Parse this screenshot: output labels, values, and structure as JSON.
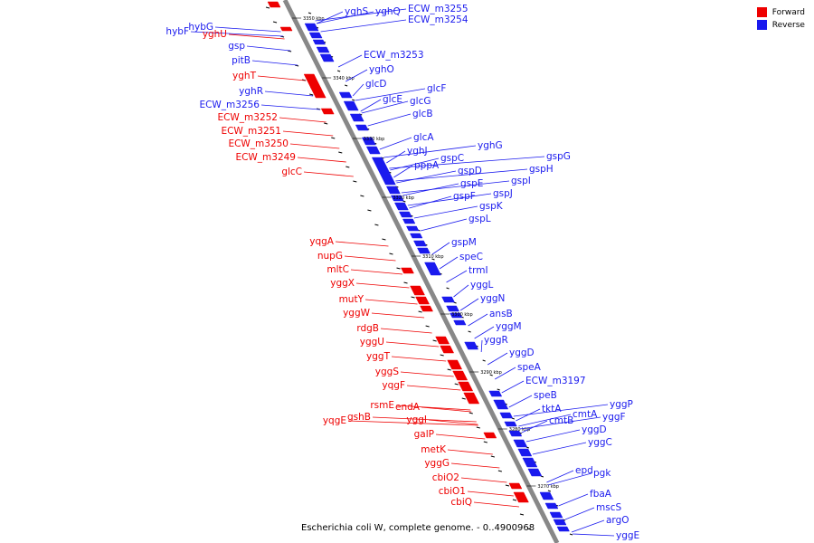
{
  "legend": {
    "forward_label": "Forward",
    "reverse_label": "Reverse",
    "forward_color": "#ee0000",
    "reverse_color": "#1a1aee"
  },
  "caption": "Escherichia coli W, complete genome. - 0..4900968",
  "backbone_color": "#888888",
  "kbp_marks": [
    "3350 kbp",
    "3340 kbp",
    "3330 kbp",
    "3320 kbp",
    "3310 kbp",
    "3300 kbp",
    "3290 kbp",
    "3280 kbp",
    "3270 kbp"
  ],
  "reverse_genes": [
    "yghS",
    "yghQ",
    "ECW_m3255",
    "ECW_m3254",
    "ECW_m3253",
    "yghO",
    "glcD",
    "glcF",
    "glcE",
    "glcG",
    "glcB",
    "glcA",
    "yghJ",
    "yghG",
    "pppA",
    "gspC",
    "gspD",
    "gspG",
    "gspH",
    "gspE",
    "gspI",
    "gspF",
    "gspJ",
    "gspK",
    "gspL",
    "gspM",
    "speC",
    "trmI",
    "yggL",
    "yggN",
    "ansB",
    "yggM",
    "yggR",
    "yggD",
    "speA",
    "ECW_m3197",
    "speB",
    "tktA",
    "cmtA",
    "yggP",
    "cmtB",
    "yggF",
    "yggD",
    "yggC",
    "epd",
    "pgk",
    "fbaA",
    "mscS",
    "argO",
    "yggE"
  ],
  "forward_genes": [
    "hybF",
    "hybG",
    "yghU",
    "gsp",
    "pitB",
    "yghT",
    "yghR",
    "ECW_m3256",
    "ECW_m3252",
    "ECW_m3251",
    "ECW_m3250",
    "ECW_m3249",
    "glcC",
    "yqgA",
    "nupG",
    "mltC",
    "yggX",
    "mutY",
    "yggW",
    "rdgB",
    "yggU",
    "yggT",
    "yggS",
    "yqgF",
    "gshB",
    "rsmE",
    "endA",
    "yqgE",
    "yggI",
    "galP",
    "metK",
    "yggG",
    "cbiO2",
    "cbiO1",
    "cbiQ"
  ]
}
